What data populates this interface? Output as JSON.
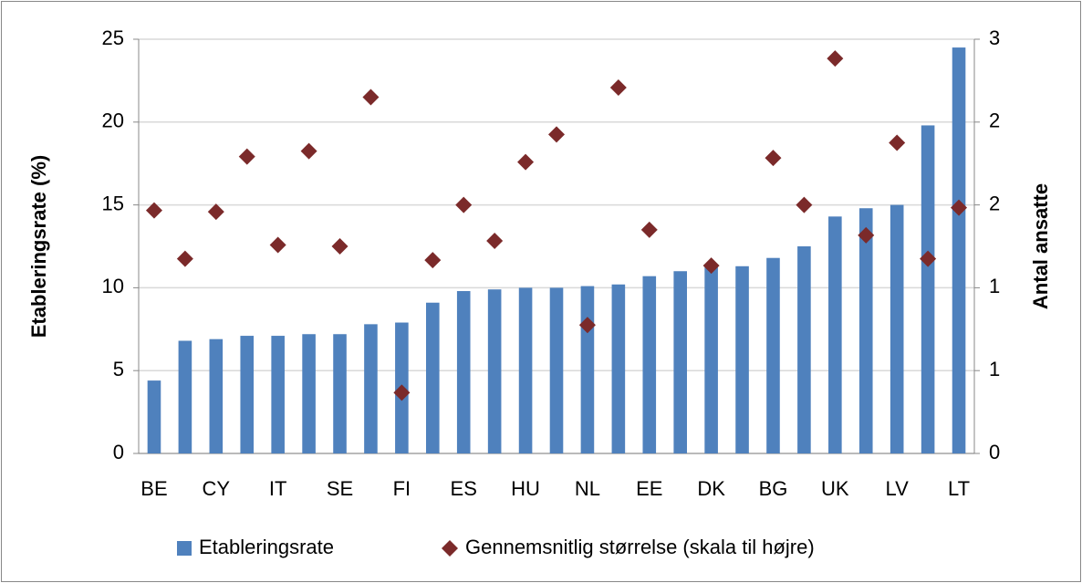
{
  "chart_data": {
    "type": "bar",
    "y_label": "Etableringsrate (%)",
    "y2_label": "Antal ansatte",
    "categories": [
      "BE",
      null,
      "CY",
      null,
      "IT",
      null,
      "SE",
      null,
      "FI",
      null,
      "ES",
      null,
      "HU",
      null,
      "NL",
      null,
      "EE",
      null,
      "DK",
      null,
      "BG",
      null,
      "UK",
      null,
      "LV",
      null,
      "LT"
    ],
    "series": [
      {
        "name": "Etableringsrate",
        "type": "bar",
        "color": "#4f81bd",
        "values": [
          4.4,
          6.8,
          6.9,
          7.1,
          7.1,
          7.2,
          7.2,
          7.8,
          7.9,
          9.1,
          9.8,
          9.9,
          10.0,
          10.0,
          10.1,
          10.2,
          10.7,
          11.0,
          11.3,
          11.3,
          11.8,
          12.5,
          14.3,
          14.8,
          15.0,
          19.8,
          24.5
        ]
      },
      {
        "name": "Gennemsnitlig størrelse (skala til højre)",
        "type": "scatter",
        "axis": "y2",
        "color": "#7b2a2a",
        "values": [
          1.76,
          1.41,
          1.75,
          2.15,
          1.51,
          2.19,
          1.5,
          2.58,
          0.44,
          1.4,
          1.8,
          1.54,
          2.11,
          2.31,
          0.93,
          2.65,
          1.62,
          null,
          1.36,
          null,
          2.14,
          1.8,
          2.86,
          1.58,
          2.25,
          1.41,
          1.78
        ]
      }
    ],
    "ylim": [
      0,
      25
    ],
    "yticks": [
      0,
      5,
      10,
      15,
      20,
      25
    ],
    "y2lim": [
      0,
      3
    ],
    "y2ticks": [
      0,
      {
        "value": 0.6,
        "label": "1"
      },
      {
        "value": 1.2,
        "label": "1"
      },
      {
        "value": 1.8,
        "label": "2"
      },
      {
        "value": 2.4,
        "label": "2"
      },
      3
    ],
    "grid": true,
    "legend": "bottom"
  }
}
